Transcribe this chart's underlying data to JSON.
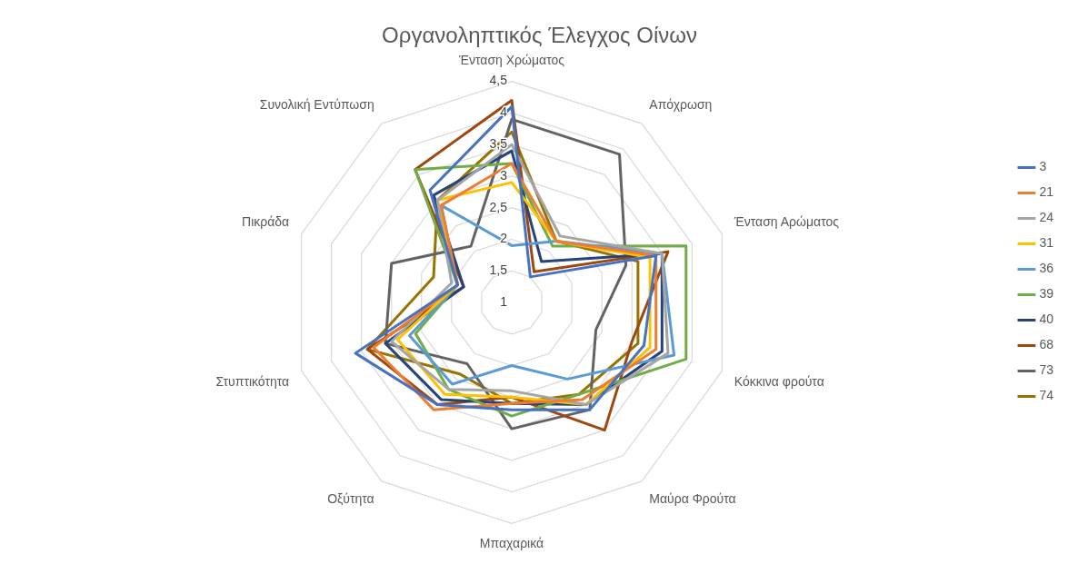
{
  "chart_data": {
    "type": "radar",
    "title": "Οργανοληπτικός Έλεγχος Οίνων",
    "categories": [
      "Ένταση Χρώματος",
      "Απόχρωση",
      "Ένταση Αρώματος",
      "Κόκκινα φρούτα",
      "Μαύρα Φρούτα",
      "Μπαχαρικά",
      "Οξύτητα",
      "Στυπτικότητα",
      "Πικράδα",
      "Συνολική Εντύπωση"
    ],
    "series": [
      {
        "name": "3",
        "color": "#4472c4",
        "values": [
          4.1,
          1.5,
          3.4,
          3.2,
          3.1,
          2.7,
          3.0,
          3.6,
          1.9,
          3.2
        ]
      },
      {
        "name": "21",
        "color": "#ed7d31",
        "values": [
          3.2,
          2.2,
          3.4,
          3.4,
          2.9,
          2.6,
          3.1,
          3.3,
          1.9,
          2.9
        ]
      },
      {
        "name": "24",
        "color": "#a5a5a5",
        "values": [
          3.5,
          2.3,
          3.5,
          3.6,
          3.0,
          2.4,
          2.7,
          3.0,
          2.0,
          3.0
        ]
      },
      {
        "name": "31",
        "color": "#ffc000",
        "values": [
          2.9,
          2.2,
          3.3,
          3.3,
          3.0,
          2.5,
          2.8,
          2.9,
          1.9,
          3.0
        ]
      },
      {
        "name": "36",
        "color": "#5b9bd5",
        "values": [
          1.9,
          2.2,
          3.5,
          3.7,
          2.5,
          2.0,
          2.6,
          2.7,
          1.9,
          2.9
        ]
      },
      {
        "name": "39",
        "color": "#70ad47",
        "values": [
          3.2,
          2.1,
          3.9,
          3.9,
          2.8,
          2.8,
          2.7,
          2.6,
          1.9,
          3.6
        ]
      },
      {
        "name": "40",
        "color": "#264478",
        "values": [
          3.4,
          1.8,
          3.5,
          3.5,
          3.0,
          2.6,
          2.9,
          3.1,
          1.8,
          3.1
        ]
      },
      {
        "name": "68",
        "color": "#9e480e",
        "values": [
          4.2,
          1.6,
          3.6,
          3.0,
          3.5,
          2.5,
          3.0,
          3.4,
          1.8,
          3.6
        ]
      },
      {
        "name": "73",
        "color": "#636363",
        "values": [
          3.9,
          3.9,
          2.9,
          2.4,
          3.1,
          3.0,
          2.2,
          3.1,
          3.0,
          2.1
        ]
      },
      {
        "name": "74",
        "color": "#997300",
        "values": [
          3.7,
          2.2,
          3.1,
          3.1,
          2.8,
          2.6,
          2.4,
          3.4,
          2.3,
          3.0
        ]
      }
    ],
    "ylim": [
      1,
      4.5
    ],
    "yticks": [
      1,
      {
        "value": 1.5,
        "label": "1,5"
      },
      2,
      {
        "value": 2.5,
        "label": "2,5"
      },
      3,
      {
        "value": 3.5,
        "label": "3,5"
      },
      4,
      {
        "value": 4.5,
        "label": "4,5"
      }
    ],
    "grid": true,
    "legend": "right",
    "marker": "none",
    "line_style": "solid"
  }
}
